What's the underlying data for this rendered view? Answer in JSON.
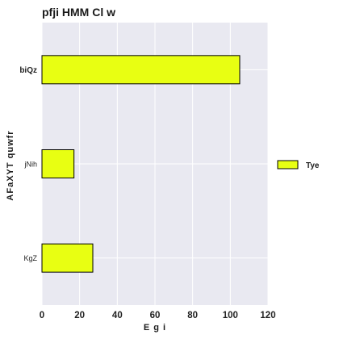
{
  "chart_data": {
    "type": "bar",
    "orientation": "horizontal",
    "title": "pfji HMM Cl w",
    "xlabel": "E g i",
    "ylabel": "AFaXYT  quwfr",
    "categories": [
      "biQz",
      "jNih",
      "KgZ"
    ],
    "series": [
      {
        "name": "Tye",
        "values": [
          105,
          17,
          27
        ],
        "color": "#e8ff12"
      }
    ],
    "xlim": [
      0,
      120
    ],
    "xticks": [
      0,
      20,
      40,
      60,
      80,
      100,
      120
    ],
    "grid": true,
    "legend_position": "right",
    "background_color": "#e9e9f1",
    "bold_categories": [
      "biQz"
    ]
  }
}
